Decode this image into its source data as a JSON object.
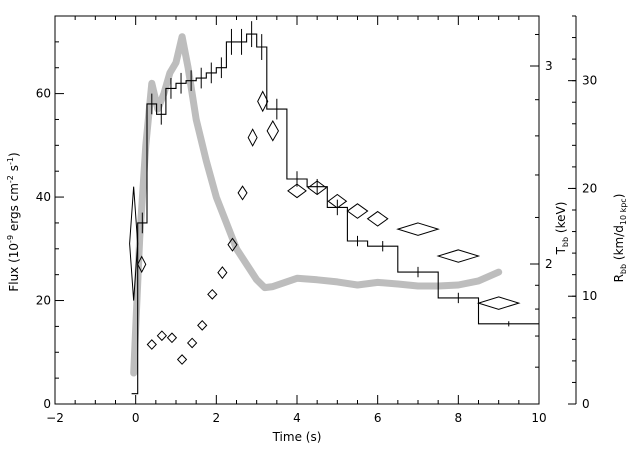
{
  "chart_data": {
    "type": "line",
    "xlabel": "Time (s)",
    "ylabel_left": "Flux (10⁻⁹ ergs cm⁻² s⁻¹)",
    "ylabel_right_1": "T_bb (keV)",
    "ylabel_right_2": "R_bb (km/d_10 kpc)",
    "xlim": [
      -2,
      10
    ],
    "ylim": [
      0,
      75
    ],
    "x_ticks": [
      -2,
      0,
      2,
      4,
      6,
      8,
      10
    ],
    "y_ticks": [
      0,
      20,
      40,
      60
    ],
    "tbb_axis": {
      "ticks": [
        2,
        3
      ],
      "labels": [
        "2",
        "3"
      ]
    },
    "rbb_axis": {
      "ylim": [
        0,
        36
      ],
      "ticks": [
        0,
        10,
        20,
        30
      ],
      "labels": [
        "0",
        "10",
        "20",
        "30"
      ]
    },
    "grid": false,
    "series": [
      {
        "kind": "flux_histogram",
        "color": "#000000",
        "points": [
          {
            "x0": -0.1,
            "x1": 0.05,
            "y": 2,
            "err": 0
          },
          {
            "x0": 0.05,
            "x1": 0.28,
            "y": 35,
            "err": 2
          },
          {
            "x0": 0.28,
            "x1": 0.52,
            "y": 58,
            "err": 2
          },
          {
            "x0": 0.52,
            "x1": 0.75,
            "y": 56,
            "err": 2
          },
          {
            "x0": 0.75,
            "x1": 1.0,
            "y": 61,
            "err": 2
          },
          {
            "x0": 1.0,
            "x1": 1.25,
            "y": 62,
            "err": 2
          },
          {
            "x0": 1.25,
            "x1": 1.5,
            "y": 62.5,
            "err": 2
          },
          {
            "x0": 1.5,
            "x1": 1.75,
            "y": 63,
            "err": 2
          },
          {
            "x0": 1.75,
            "x1": 2.0,
            "y": 64,
            "err": 2
          },
          {
            "x0": 2.0,
            "x1": 2.25,
            "y": 65,
            "err": 2
          },
          {
            "x0": 2.25,
            "x1": 2.5,
            "y": 70,
            "err": 2.5
          },
          {
            "x0": 2.5,
            "x1": 2.75,
            "y": 70,
            "err": 2.5
          },
          {
            "x0": 2.75,
            "x1": 3.0,
            "y": 71.5,
            "err": 2.5
          },
          {
            "x0": 3.0,
            "x1": 3.25,
            "y": 69,
            "err": 2.5
          },
          {
            "x0": 3.25,
            "x1": 3.75,
            "y": 57,
            "err": 2
          },
          {
            "x0": 3.75,
            "x1": 4.25,
            "y": 43.5,
            "err": 1.5
          },
          {
            "x0": 4.25,
            "x1": 4.75,
            "y": 42,
            "err": 1.5
          },
          {
            "x0": 4.75,
            "x1": 5.25,
            "y": 38,
            "err": 1.5
          },
          {
            "x0": 5.25,
            "x1": 5.75,
            "y": 31.5,
            "err": 1
          },
          {
            "x0": 5.75,
            "x1": 6.5,
            "y": 30.5,
            "err": 1
          },
          {
            "x0": 6.5,
            "x1": 7.5,
            "y": 25.5,
            "err": 1
          },
          {
            "x0": 7.5,
            "x1": 8.5,
            "y": 20.5,
            "err": 1
          },
          {
            "x0": 8.5,
            "x1": 10.0,
            "y": 15.5,
            "err": 0.5
          }
        ]
      },
      {
        "kind": "temperature_band",
        "color": "#bdbdbd",
        "x": [
          -0.05,
          0.1,
          0.25,
          0.4,
          0.55,
          0.7,
          0.85,
          1.0,
          1.15,
          1.3,
          1.5,
          1.75,
          2.0,
          2.25,
          2.5,
          2.75,
          3.0,
          3.2,
          3.4,
          3.7,
          4.0,
          4.5,
          5.0,
          5.5,
          6.0,
          6.5,
          7.0,
          7.5,
          8.0,
          8.5,
          9.0
        ],
        "y": [
          6,
          32,
          50,
          62,
          57,
          60,
          64,
          66,
          71,
          65,
          55,
          47,
          40,
          35,
          30,
          27,
          24,
          22.5,
          22.7,
          23.5,
          24.3,
          24,
          23.6,
          23,
          23.5,
          23.2,
          22.8,
          22.8,
          23,
          23.8,
          25.5
        ]
      },
      {
        "kind": "radius_diamonds",
        "color": "#000000",
        "points": [
          {
            "x": -0.05,
            "y": 31,
            "w": 0.2,
            "h": 22
          },
          {
            "x": 0.15,
            "y": 27,
            "w": 0.2,
            "h": 3
          },
          {
            "x": 0.4,
            "y": 11.5,
            "w": 0.22,
            "h": 1.8
          },
          {
            "x": 0.65,
            "y": 13.2,
            "w": 0.22,
            "h": 1.8
          },
          {
            "x": 0.9,
            "y": 12.8,
            "w": 0.22,
            "h": 1.8
          },
          {
            "x": 1.15,
            "y": 8.6,
            "w": 0.22,
            "h": 1.8
          },
          {
            "x": 1.4,
            "y": 11.8,
            "w": 0.22,
            "h": 1.8
          },
          {
            "x": 1.65,
            "y": 15.2,
            "w": 0.22,
            "h": 1.8
          },
          {
            "x": 1.9,
            "y": 21.2,
            "w": 0.22,
            "h": 1.8
          },
          {
            "x": 2.15,
            "y": 25.4,
            "w": 0.22,
            "h": 2.2
          },
          {
            "x": 2.4,
            "y": 30.8,
            "w": 0.22,
            "h": 2.4
          },
          {
            "x": 2.65,
            "y": 40.8,
            "w": 0.22,
            "h": 2.6
          },
          {
            "x": 2.9,
            "y": 51.5,
            "w": 0.22,
            "h": 3.2
          },
          {
            "x": 3.15,
            "y": 58.5,
            "w": 0.25,
            "h": 3.8
          },
          {
            "x": 3.4,
            "y": 52.8,
            "w": 0.28,
            "h": 3.8
          },
          {
            "x": 4.0,
            "y": 41.2,
            "w": 0.45,
            "h": 2.6
          },
          {
            "x": 4.5,
            "y": 41.8,
            "w": 0.45,
            "h": 2.6
          },
          {
            "x": 5.0,
            "y": 39.2,
            "w": 0.45,
            "h": 2.6
          },
          {
            "x": 5.5,
            "y": 37.3,
            "w": 0.5,
            "h": 2.8
          },
          {
            "x": 6.0,
            "y": 35.8,
            "w": 0.5,
            "h": 2.8
          },
          {
            "x": 7.0,
            "y": 33.8,
            "w": 1.0,
            "h": 2.4
          },
          {
            "x": 8.0,
            "y": 28.6,
            "w": 1.0,
            "h": 2.4
          },
          {
            "x": 9.0,
            "y": 19.5,
            "w": 1.0,
            "h": 2.4
          }
        ]
      }
    ]
  }
}
